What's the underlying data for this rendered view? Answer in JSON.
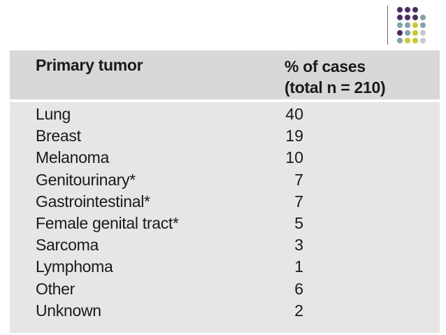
{
  "header": {
    "col1": "Primary tumor",
    "col2_line1": "% of cases",
    "col2_line2": "(total n = 210)"
  },
  "rows": [
    {
      "label": "Lung",
      "value": "40"
    },
    {
      "label": "Breast",
      "value": "19"
    },
    {
      "label": "Melanoma",
      "value": "10"
    },
    {
      "label": "Genitourinary*",
      "value": "7"
    },
    {
      "label": "Gastrointestinal*",
      "value": "7"
    },
    {
      "label": "Female genital tract*",
      "value": "5"
    },
    {
      "label": "Sarcoma",
      "value": "3"
    },
    {
      "label": "Lymphoma",
      "value": "1"
    },
    {
      "label": "Other",
      "value": "6"
    },
    {
      "label": "Unknown",
      "value": "2"
    }
  ],
  "logo": {
    "colors": {
      "purple": "#4b2a66",
      "teal": "#7fa3aa",
      "yellow": "#c9c92a",
      "gray": "#c7c9cc"
    }
  }
}
